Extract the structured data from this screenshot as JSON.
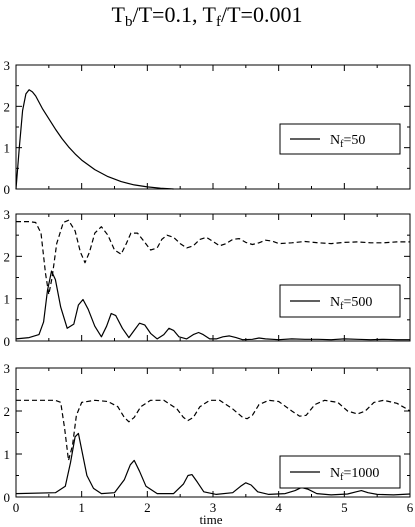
{
  "title": {
    "main1": "T",
    "sub1": "b",
    "main2": "/T=0.1, T",
    "sub2": "f",
    "main3": "/T=0.001"
  },
  "xlabel": "time",
  "chart_data": [
    {
      "type": "line",
      "panel": "top",
      "xlim": [
        0,
        6
      ],
      "ylim": [
        0,
        3
      ],
      "xticks": [
        0,
        1,
        2,
        3,
        4,
        5,
        6
      ],
      "yticks": [
        0,
        1,
        2,
        3
      ],
      "show_x_tick_labels": false,
      "legend": {
        "prefix": "N",
        "sub": "f",
        "suffix": "=50",
        "position": "right"
      },
      "series": [
        {
          "style": "solid",
          "x": [
            0,
            0.05,
            0.1,
            0.15,
            0.2,
            0.25,
            0.3,
            0.4,
            0.5,
            0.6,
            0.7,
            0.8,
            0.9,
            1.0,
            1.2,
            1.4,
            1.6,
            1.8,
            2.0,
            2.2,
            2.4
          ],
          "y": [
            0,
            1.0,
            1.9,
            2.3,
            2.4,
            2.35,
            2.25,
            1.95,
            1.7,
            1.45,
            1.22,
            1.02,
            0.85,
            0.7,
            0.47,
            0.3,
            0.18,
            0.1,
            0.05,
            0.02,
            0.0
          ]
        }
      ]
    },
    {
      "type": "line",
      "panel": "middle",
      "xlim": [
        0,
        6
      ],
      "ylim": [
        0,
        3
      ],
      "xticks": [
        0,
        1,
        2,
        3,
        4,
        5,
        6
      ],
      "yticks": [
        0,
        1,
        2,
        3
      ],
      "show_x_tick_labels": false,
      "legend": {
        "prefix": "N",
        "sub": "f",
        "suffix": "=500",
        "position": "right"
      },
      "series": [
        {
          "style": "dashed",
          "x": [
            0,
            0.2,
            0.3,
            0.38,
            0.45,
            0.5,
            0.55,
            0.62,
            0.72,
            0.8,
            0.9,
            0.98,
            1.05,
            1.12,
            1.2,
            1.3,
            1.4,
            1.5,
            1.6,
            1.68,
            1.75,
            1.85,
            1.95,
            2.05,
            2.15,
            2.22,
            2.3,
            2.4,
            2.5,
            2.6,
            2.7,
            2.8,
            2.9,
            3.0,
            3.1,
            3.2,
            3.3,
            3.4,
            3.5,
            3.6,
            3.7,
            3.8,
            3.9,
            4.0,
            4.2,
            4.4,
            4.6,
            4.8,
            5.0,
            5.2,
            5.4,
            5.6,
            5.8,
            6.0
          ],
          "y": [
            2.82,
            2.82,
            2.8,
            2.55,
            1.6,
            1.1,
            1.5,
            2.3,
            2.8,
            2.85,
            2.6,
            2.1,
            1.85,
            2.1,
            2.55,
            2.7,
            2.5,
            2.15,
            2.05,
            2.3,
            2.55,
            2.55,
            2.35,
            2.15,
            2.2,
            2.4,
            2.5,
            2.45,
            2.3,
            2.2,
            2.25,
            2.4,
            2.45,
            2.35,
            2.25,
            2.3,
            2.4,
            2.42,
            2.33,
            2.28,
            2.32,
            2.38,
            2.36,
            2.3,
            2.32,
            2.35,
            2.32,
            2.3,
            2.33,
            2.34,
            2.32,
            2.32,
            2.34,
            2.34
          ]
        },
        {
          "style": "solid",
          "x": [
            0,
            0.2,
            0.35,
            0.42,
            0.48,
            0.54,
            0.6,
            0.68,
            0.78,
            0.88,
            0.95,
            1.02,
            1.1,
            1.2,
            1.3,
            1.38,
            1.45,
            1.52,
            1.62,
            1.72,
            1.8,
            1.88,
            1.96,
            2.05,
            2.15,
            2.25,
            2.33,
            2.4,
            2.48,
            2.6,
            2.7,
            2.78,
            2.85,
            2.95,
            3.05,
            3.15,
            3.25,
            3.35,
            3.45,
            3.6,
            3.7,
            3.8,
            4.0,
            4.2,
            4.4,
            4.6,
            4.8,
            5.0,
            5.2,
            5.4,
            5.6,
            5.8,
            6.0
          ],
          "y": [
            0.05,
            0.08,
            0.15,
            0.45,
            1.2,
            1.65,
            1.45,
            0.8,
            0.3,
            0.4,
            0.85,
            0.98,
            0.75,
            0.35,
            0.1,
            0.35,
            0.65,
            0.6,
            0.3,
            0.08,
            0.25,
            0.42,
            0.38,
            0.18,
            0.05,
            0.15,
            0.3,
            0.25,
            0.1,
            0.05,
            0.15,
            0.2,
            0.15,
            0.05,
            0.05,
            0.1,
            0.12,
            0.08,
            0.03,
            0.04,
            0.07,
            0.05,
            0.03,
            0.05,
            0.04,
            0.04,
            0.03,
            0.05,
            0.04,
            0.03,
            0.04,
            0.03,
            0.03
          ]
        }
      ]
    },
    {
      "type": "line",
      "panel": "bottom",
      "xlim": [
        0,
        6
      ],
      "ylim": [
        0,
        3
      ],
      "xticks": [
        0,
        1,
        2,
        3,
        4,
        5,
        6
      ],
      "yticks": [
        0,
        1,
        2,
        3
      ],
      "show_x_tick_labels": true,
      "legend": {
        "prefix": "N",
        "sub": "f",
        "suffix": "=1000",
        "position": "right"
      },
      "series": [
        {
          "style": "dashed",
          "x": [
            0,
            0.6,
            0.68,
            0.74,
            0.8,
            0.86,
            0.92,
            1.0,
            1.2,
            1.4,
            1.55,
            1.65,
            1.72,
            1.8,
            1.9,
            2.05,
            2.25,
            2.45,
            2.55,
            2.62,
            2.7,
            2.8,
            2.95,
            3.1,
            3.3,
            3.45,
            3.52,
            3.6,
            3.7,
            3.85,
            4.0,
            4.2,
            4.32,
            4.42,
            4.55,
            4.7,
            4.9,
            5.05,
            5.2,
            5.32,
            5.45,
            5.6,
            5.8,
            5.95,
            6.0
          ],
          "y": [
            2.25,
            2.25,
            2.2,
            1.6,
            0.85,
            1.2,
            1.9,
            2.2,
            2.25,
            2.22,
            2.1,
            1.85,
            1.75,
            1.85,
            2.1,
            2.25,
            2.25,
            2.05,
            1.85,
            1.78,
            1.85,
            2.1,
            2.25,
            2.25,
            2.05,
            1.85,
            1.82,
            1.9,
            2.15,
            2.25,
            2.22,
            2.0,
            1.88,
            1.9,
            2.15,
            2.25,
            2.2,
            2.0,
            1.93,
            2.0,
            2.2,
            2.25,
            2.18,
            2.05,
            2.0
          ]
        },
        {
          "style": "solid",
          "x": [
            0,
            0.6,
            0.75,
            0.83,
            0.9,
            0.95,
            1.0,
            1.08,
            1.18,
            1.3,
            1.5,
            1.65,
            1.74,
            1.8,
            1.88,
            1.98,
            2.15,
            2.4,
            2.55,
            2.62,
            2.68,
            2.76,
            2.86,
            3.05,
            3.3,
            3.42,
            3.5,
            3.58,
            3.68,
            3.85,
            4.1,
            4.25,
            4.35,
            4.45,
            4.58,
            4.8,
            5.05,
            5.18,
            5.26,
            5.36,
            5.5,
            5.75,
            6.0
          ],
          "y": [
            0.08,
            0.1,
            0.25,
            0.8,
            1.4,
            1.48,
            1.1,
            0.5,
            0.2,
            0.08,
            0.1,
            0.4,
            0.75,
            0.85,
            0.6,
            0.25,
            0.08,
            0.08,
            0.3,
            0.5,
            0.52,
            0.35,
            0.12,
            0.06,
            0.1,
            0.25,
            0.33,
            0.28,
            0.12,
            0.06,
            0.08,
            0.15,
            0.22,
            0.18,
            0.08,
            0.05,
            0.07,
            0.12,
            0.15,
            0.1,
            0.06,
            0.05,
            0.07
          ]
        }
      ]
    }
  ]
}
